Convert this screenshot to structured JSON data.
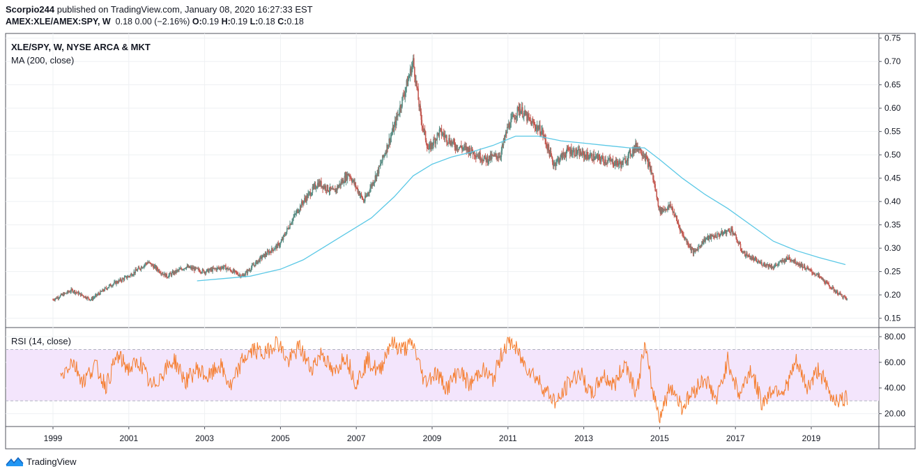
{
  "header": {
    "author": "Scorpio244",
    "published_text": "published on TradingView.com, January 08, 2020 16:27:33 EST",
    "symbol": "AMEX:XLE/AMEX:SPY, W",
    "price": "0.18",
    "change": "0.00 (−2.16%)",
    "o_label": "O:",
    "o_value": "0.19",
    "h_label": "H:",
    "h_value": "0.19",
    "l_label": "L:",
    "l_value": "0.18",
    "c_label": "C:",
    "c_value": "0.18"
  },
  "footer": {
    "brand": "TradingView"
  },
  "colors": {
    "up": "#26a69a",
    "down": "#ef5350",
    "candle_body": "#8a8f98",
    "ma": "#5ac8e6",
    "rsi": "#f57c2c",
    "rsi_band": "#f3e5fc",
    "grid": "#eef0f3"
  },
  "chart_data": [
    {
      "type": "line",
      "title": "XLE/SPY, W, NYSE ARCA & MKT",
      "subtitle": "MA (200, close)",
      "x_ticks": [
        "1999",
        "2001",
        "2003",
        "2005",
        "2007",
        "2009",
        "2011",
        "2013",
        "2015",
        "2017",
        "2019"
      ],
      "ylim": [
        0.13,
        0.76
      ],
      "y_ticks": [
        "0.75",
        "0.70",
        "0.65",
        "0.60",
        "0.55",
        "0.50",
        "0.45",
        "0.40",
        "0.35",
        "0.30",
        "0.25",
        "0.20",
        "0.15"
      ],
      "series": [
        {
          "x": [
            1999.0,
            1999.5,
            2000.0,
            2000.5,
            2001.0,
            2001.5,
            2002.0,
            2002.5,
            2003.0,
            2003.5,
            2004.0,
            2004.5,
            2005.0,
            2005.3,
            2005.6,
            2006.0,
            2006.4,
            2006.8,
            2007.2,
            2007.6,
            2008.0,
            2008.4,
            2008.5,
            2008.7,
            2008.9,
            2009.2,
            2009.6,
            2010.0,
            2010.4,
            2010.8,
            2011.0,
            2011.3,
            2011.6,
            2011.9,
            2012.2,
            2012.6,
            2013.0,
            2013.5,
            2014.0,
            2014.4,
            2014.6,
            2014.8,
            2015.0,
            2015.3,
            2015.6,
            2015.9,
            2016.2,
            2016.6,
            2016.9,
            2017.2,
            2017.6,
            2018.0,
            2018.4,
            2018.8,
            2019.2,
            2019.6,
            2019.95
          ],
          "values": [
            0.19,
            0.21,
            0.19,
            0.22,
            0.24,
            0.27,
            0.24,
            0.26,
            0.25,
            0.26,
            0.24,
            0.28,
            0.31,
            0.36,
            0.4,
            0.44,
            0.42,
            0.46,
            0.4,
            0.47,
            0.56,
            0.67,
            0.7,
            0.58,
            0.51,
            0.55,
            0.52,
            0.51,
            0.49,
            0.5,
            0.56,
            0.6,
            0.57,
            0.55,
            0.48,
            0.51,
            0.5,
            0.49,
            0.48,
            0.52,
            0.5,
            0.46,
            0.38,
            0.39,
            0.33,
            0.29,
            0.32,
            0.33,
            0.34,
            0.29,
            0.27,
            0.26,
            0.28,
            0.26,
            0.24,
            0.21,
            0.19
          ]
        },
        {
          "name": "MA (200, close)",
          "x": [
            2002.8,
            2003.5,
            2004.2,
            2005.0,
            2005.6,
            2006.2,
            2006.8,
            2007.4,
            2008.0,
            2008.5,
            2009.0,
            2009.5,
            2010.0,
            2010.6,
            2011.2,
            2011.8,
            2012.4,
            2013.0,
            2013.6,
            2014.2,
            2014.6,
            2015.0,
            2015.6,
            2016.2,
            2016.8,
            2017.4,
            2018.0,
            2018.6,
            2019.2,
            2019.9
          ],
          "values": [
            0.23,
            0.235,
            0.24,
            0.255,
            0.275,
            0.305,
            0.335,
            0.365,
            0.41,
            0.455,
            0.48,
            0.495,
            0.505,
            0.52,
            0.54,
            0.54,
            0.53,
            0.525,
            0.52,
            0.515,
            0.515,
            0.49,
            0.45,
            0.415,
            0.385,
            0.35,
            0.315,
            0.295,
            0.28,
            0.265
          ]
        }
      ]
    },
    {
      "type": "line",
      "title": "RSI (14, close)",
      "x_ticks": [
        "1999",
        "2001",
        "2003",
        "2005",
        "2007",
        "2009",
        "2011",
        "2013",
        "2015",
        "2017",
        "2019"
      ],
      "ylim": [
        10,
        86
      ],
      "y_ticks": [
        "80.00",
        "60.00",
        "40.00",
        "20.00"
      ],
      "bands": [
        30,
        70
      ],
      "series": [
        {
          "name": "RSI (14, close)",
          "x": [
            1999.2,
            1999.5,
            1999.8,
            2000.1,
            2000.4,
            2000.7,
            2001.0,
            2001.3,
            2001.6,
            2001.9,
            2002.2,
            2002.5,
            2002.8,
            2003.1,
            2003.4,
            2003.7,
            2004.0,
            2004.3,
            2004.6,
            2004.9,
            2005.2,
            2005.5,
            2005.8,
            2006.1,
            2006.4,
            2006.7,
            2007.0,
            2007.3,
            2007.6,
            2007.9,
            2008.2,
            2008.5,
            2008.8,
            2009.1,
            2009.4,
            2009.7,
            2010.0,
            2010.3,
            2010.6,
            2010.9,
            2011.1,
            2011.4,
            2011.7,
            2012.0,
            2012.3,
            2012.6,
            2012.9,
            2013.2,
            2013.5,
            2013.8,
            2014.1,
            2014.4,
            2014.6,
            2014.8,
            2015.0,
            2015.3,
            2015.6,
            2015.9,
            2016.2,
            2016.5,
            2016.8,
            2017.1,
            2017.4,
            2017.7,
            2018.0,
            2018.3,
            2018.6,
            2018.9,
            2019.2,
            2019.5,
            2019.8,
            2019.95
          ],
          "values": [
            48,
            62,
            45,
            58,
            42,
            65,
            55,
            60,
            40,
            52,
            62,
            45,
            55,
            48,
            58,
            40,
            62,
            70,
            66,
            78,
            60,
            72,
            55,
            68,
            50,
            66,
            44,
            62,
            52,
            76,
            70,
            74,
            45,
            52,
            40,
            54,
            42,
            55,
            46,
            72,
            76,
            60,
            50,
            38,
            28,
            44,
            52,
            34,
            50,
            42,
            60,
            36,
            74,
            40,
            18,
            42,
            25,
            38,
            48,
            30,
            62,
            34,
            55,
            28,
            40,
            38,
            60,
            40,
            55,
            34,
            30,
            32
          ]
        }
      ]
    }
  ]
}
